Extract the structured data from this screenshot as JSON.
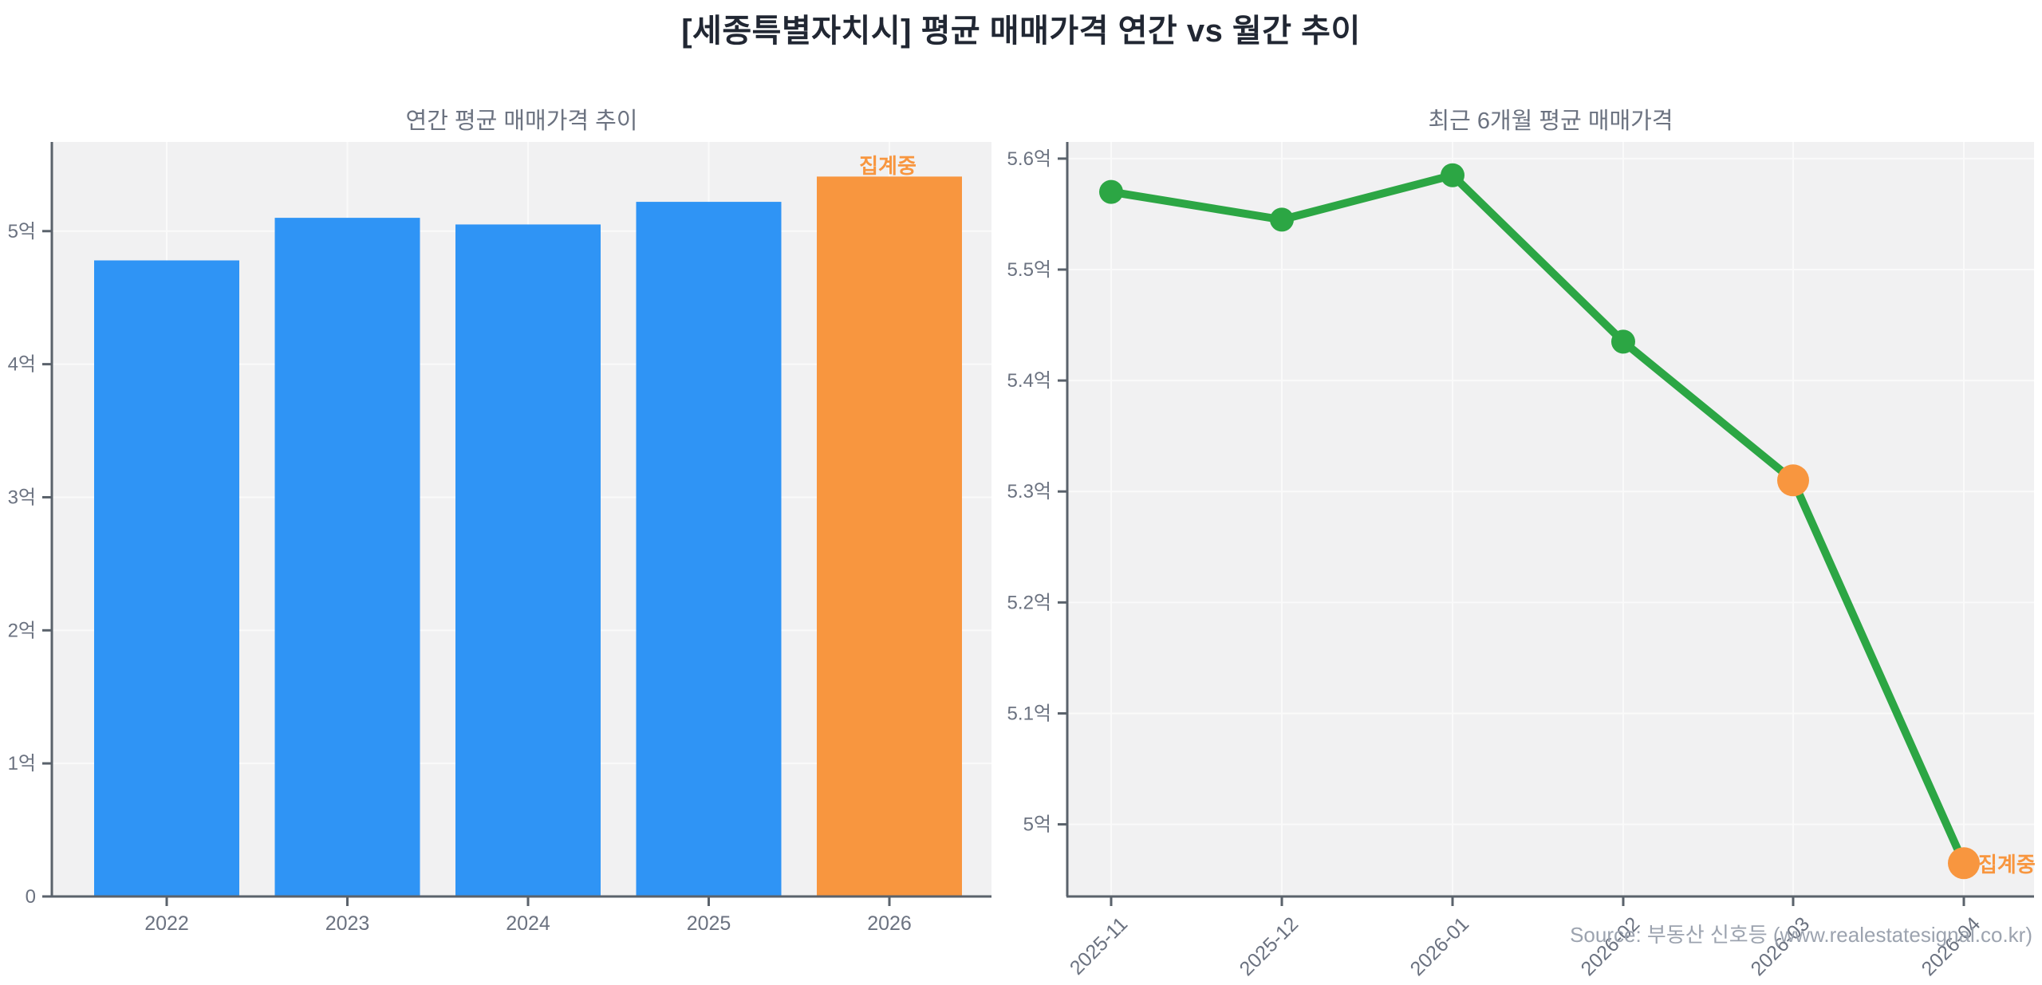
{
  "page": {
    "title": "[세종특별자치시] 평균 매매가격 연간 vs 월간 추이",
    "source_credit": "Source: 부동산 신호등 (www.realestatesignal.co.kr)"
  },
  "colors": {
    "bar_blue": "#2F94F5",
    "highlight_orange": "#F8963F",
    "line_green": "#2CA644",
    "plot_bg": "#F1F1F2",
    "grid": "#FAFAFA",
    "axis": "#5A626B",
    "tick_label": "#6B7280",
    "title_gray": "#6B7280",
    "main_title": "#212733",
    "source_gray": "#9CA3AF"
  },
  "chart_data": [
    {
      "type": "bar",
      "title": "연간 평균 매매가격 추이",
      "unit": "억",
      "categories": [
        "2022",
        "2023",
        "2024",
        "2025",
        "2026"
      ],
      "values": [
        4.78,
        5.1,
        5.05,
        5.22,
        5.41
      ],
      "ylim": [
        0,
        5.67
      ],
      "yticks": [
        {
          "value": 0,
          "label": "0"
        },
        {
          "value": 1,
          "label": "1억"
        },
        {
          "value": 2,
          "label": "2억"
        },
        {
          "value": 3,
          "label": "3억"
        },
        {
          "value": 4,
          "label": "4억"
        },
        {
          "value": 5,
          "label": "5억"
        }
      ],
      "highlight_index": 4,
      "annotation": {
        "text": "집계중",
        "category": "2026"
      },
      "grid": true,
      "legend": null
    },
    {
      "type": "line",
      "title": "최근 6개월 평균 매매가격",
      "unit": "억",
      "x": [
        "2025-11",
        "2025-12",
        "2026-01",
        "2026-02",
        "2026-03",
        "2026-04"
      ],
      "values": [
        5.57,
        5.545,
        5.585,
        5.435,
        5.31,
        4.965
      ],
      "ylim": [
        4.935,
        5.615
      ],
      "yticks": [
        {
          "value": 5.0,
          "label": "5억"
        },
        {
          "value": 5.1,
          "label": "5.1억"
        },
        {
          "value": 5.2,
          "label": "5.2억"
        },
        {
          "value": 5.3,
          "label": "5.3억"
        },
        {
          "value": 5.4,
          "label": "5.4억"
        },
        {
          "value": 5.5,
          "label": "5.5억"
        },
        {
          "value": 5.6,
          "label": "5.6억"
        }
      ],
      "highlight_indices": [
        4,
        5
      ],
      "annotation": {
        "text": "집계중",
        "x": "2026-04"
      },
      "grid": true,
      "legend": null
    }
  ]
}
